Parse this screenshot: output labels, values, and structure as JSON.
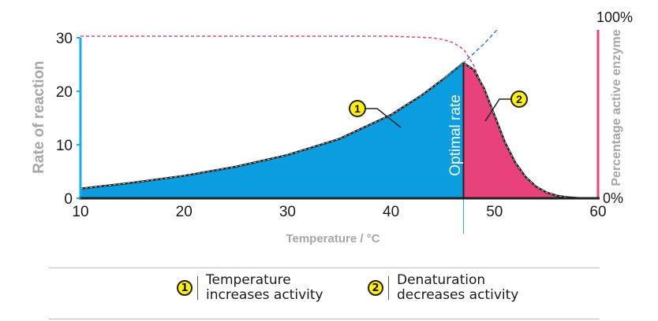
{
  "chart_data": {
    "type": "area",
    "xlabel": "Temperature / °C",
    "ylabel": "Rate of reaction",
    "y2label": "Percentage active enzyme",
    "xlim": [
      10,
      60
    ],
    "ylim": [
      0,
      30
    ],
    "x_ticks": [
      "10",
      "20",
      "30",
      "40",
      "50",
      "60"
    ],
    "y_ticks": [
      "0",
      "10",
      "20",
      "30"
    ],
    "y2_ticks": [
      "0%",
      "100%"
    ],
    "optimum_x": 47,
    "optimum_label": "Optimal rate",
    "series": [
      {
        "key": "rate",
        "color": "#0a9ee0",
        "x": [
          10,
          15,
          20,
          25,
          30,
          35,
          40,
          43,
          45,
          47,
          48,
          49,
          50,
          51,
          52,
          53,
          54,
          55,
          56,
          57,
          58,
          60
        ],
        "y": [
          1.8,
          2.9,
          4.2,
          5.9,
          8.1,
          11.1,
          15.6,
          19.3,
          22.2,
          25.3,
          24.0,
          20.5,
          15.5,
          10.5,
          6.7,
          4.0,
          2.2,
          1.1,
          0.5,
          0.2,
          0.05,
          0
        ]
      },
      {
        "key": "active_enzyme",
        "color": "#e8417c",
        "x": [
          10,
          40,
          44,
          45,
          46,
          47,
          48,
          49,
          50,
          51,
          52,
          53,
          54,
          55,
          56,
          57,
          58,
          60
        ],
        "y": [
          100,
          100,
          99,
          98,
          96,
          92,
          82,
          66,
          46,
          27,
          15,
          8,
          4,
          2,
          1,
          0.5,
          0.2,
          0
        ]
      }
    ],
    "extrapolation": {
      "color": "#2e86c1",
      "x": [
        45,
        47,
        49,
        50.3
      ],
      "y": [
        22.2,
        25.3,
        28.9,
        31.6
      ]
    },
    "annotations": [
      {
        "badge": "1",
        "text": "Temperature increases activity"
      },
      {
        "badge": "2",
        "text": "Denaturation decreases activity"
      }
    ]
  },
  "legend": [
    {
      "badge": "1",
      "line1": "Temperature",
      "line2": "increases activity"
    },
    {
      "badge": "2",
      "line1": "Denaturation",
      "line2": "decreases activity"
    }
  ]
}
